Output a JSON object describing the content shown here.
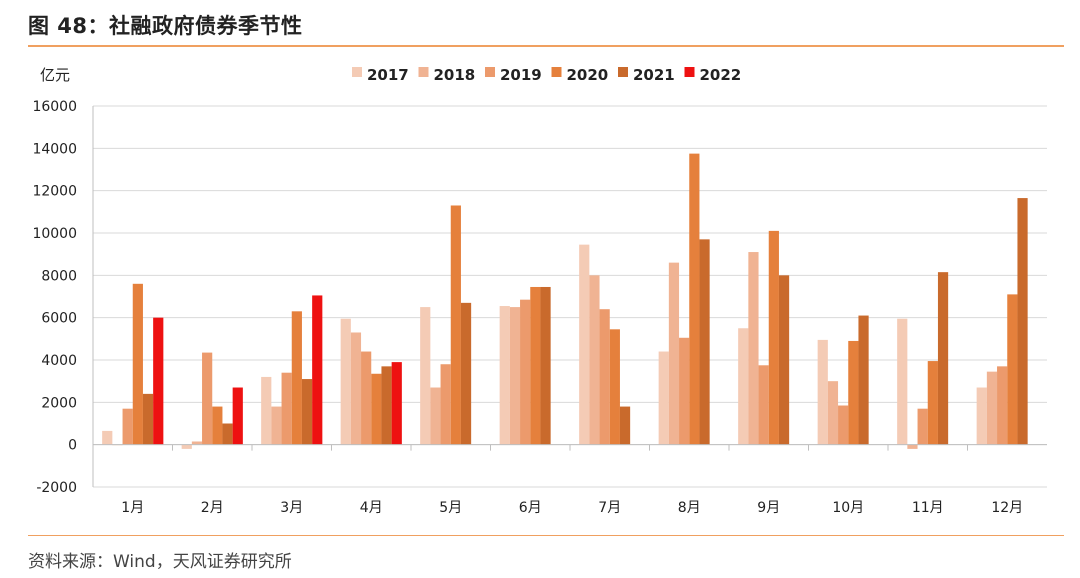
{
  "header": {
    "title": "图 48：社融政府债券季节性"
  },
  "source": "资料来源：Wind，天风证券研究所",
  "chart_data": {
    "type": "bar",
    "title": "图 48：社融政府债券季节性",
    "ylabel": "亿元",
    "ylim": [
      -2000,
      16000
    ],
    "yticks": [
      -2000,
      0,
      2000,
      4000,
      6000,
      8000,
      10000,
      12000,
      14000,
      16000
    ],
    "ytick_labels": [
      "-2000",
      "0",
      "2000",
      "4000",
      "6000",
      "8000",
      "10000",
      "12000",
      "14000",
      "16000"
    ],
    "grid": true,
    "legend_position": "top",
    "categories": [
      "1月",
      "2月",
      "3月",
      "4月",
      "5月",
      "6月",
      "7月",
      "8月",
      "9月",
      "10月",
      "11月",
      "12月"
    ],
    "series": [
      {
        "name": "2017",
        "color": "#f4cbb5",
        "values": [
          650,
          -200,
          3200,
          5950,
          6500,
          6550,
          9450,
          4400,
          5500,
          4950,
          5950,
          2700
        ]
      },
      {
        "name": "2018",
        "color": "#f0b393",
        "values": [
          0,
          150,
          1800,
          5300,
          2700,
          6500,
          8000,
          8600,
          9100,
          3000,
          -200,
          3450
        ]
      },
      {
        "name": "2019",
        "color": "#ec9a6c",
        "values": [
          1700,
          4350,
          3400,
          4400,
          3800,
          6850,
          6400,
          5050,
          3750,
          1850,
          1700,
          3700
        ]
      },
      {
        "name": "2020",
        "color": "#e5803c",
        "values": [
          7600,
          1800,
          6300,
          3350,
          11300,
          7450,
          5450,
          13750,
          10100,
          4900,
          3950,
          7100
        ]
      },
      {
        "name": "2021",
        "color": "#c96a2c",
        "values": [
          2400,
          1000,
          3100,
          3700,
          6700,
          7450,
          1800,
          9700,
          8000,
          6100,
          8150,
          11650
        ]
      },
      {
        "name": "2022",
        "color": "#ee1111",
        "values": [
          6000,
          2700,
          7050,
          3900,
          null,
          null,
          null,
          null,
          null,
          null,
          null,
          null
        ]
      }
    ]
  }
}
